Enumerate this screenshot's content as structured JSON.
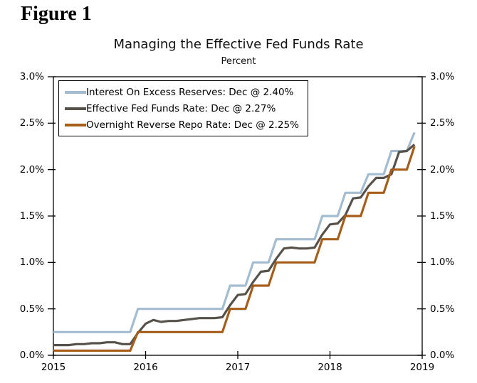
{
  "figure_label": "Figure 1",
  "chart_data": {
    "type": "line",
    "title": "Managing the Effective Fed Funds Rate",
    "subtitle": "Percent",
    "x_start_year": 2015,
    "x_end_year": 2019,
    "x_tick_labels": [
      "2015",
      "2016",
      "2017",
      "2018",
      "2019"
    ],
    "y_ticks": [
      0.0,
      0.5,
      1.0,
      1.5,
      2.0,
      2.5,
      3.0
    ],
    "y_tick_labels": [
      "0.0%",
      "0.5%",
      "1.0%",
      "1.5%",
      "2.0%",
      "2.5%",
      "3.0%"
    ],
    "ylim": [
      0.0,
      3.0
    ],
    "grid": false,
    "legend_position": "top-left",
    "axis_color": "#000000",
    "data_frequency": "monthly, Jan 2015 - Dec 2018",
    "series": [
      {
        "name": "Interest On Excess Reserves: Dec @ 2.40%",
        "color": "#a3bccf",
        "values": [
          0.25,
          0.25,
          0.25,
          0.25,
          0.25,
          0.25,
          0.25,
          0.25,
          0.25,
          0.25,
          0.25,
          0.5,
          0.5,
          0.5,
          0.5,
          0.5,
          0.5,
          0.5,
          0.5,
          0.5,
          0.5,
          0.5,
          0.5,
          0.75,
          0.75,
          0.75,
          1.0,
          1.0,
          1.0,
          1.25,
          1.25,
          1.25,
          1.25,
          1.25,
          1.25,
          1.5,
          1.5,
          1.5,
          1.75,
          1.75,
          1.75,
          1.95,
          1.95,
          1.95,
          2.2,
          2.2,
          2.2,
          2.4
        ]
      },
      {
        "name": "Effective Fed Funds Rate: Dec @ 2.27%",
        "color": "#57514b",
        "values": [
          0.11,
          0.11,
          0.11,
          0.12,
          0.12,
          0.13,
          0.13,
          0.14,
          0.14,
          0.12,
          0.12,
          0.24,
          0.34,
          0.38,
          0.36,
          0.37,
          0.37,
          0.38,
          0.39,
          0.4,
          0.4,
          0.4,
          0.41,
          0.54,
          0.65,
          0.66,
          0.79,
          0.9,
          0.91,
          1.04,
          1.15,
          1.16,
          1.15,
          1.15,
          1.16,
          1.3,
          1.41,
          1.42,
          1.51,
          1.69,
          1.7,
          1.82,
          1.91,
          1.91,
          1.95,
          2.19,
          2.2,
          2.27
        ]
      },
      {
        "name": "Overnight Reverse Repo Rate: Dec @ 2.25%",
        "color": "#a65d1a",
        "values": [
          0.05,
          0.05,
          0.05,
          0.05,
          0.05,
          0.05,
          0.05,
          0.05,
          0.05,
          0.05,
          0.05,
          0.25,
          0.25,
          0.25,
          0.25,
          0.25,
          0.25,
          0.25,
          0.25,
          0.25,
          0.25,
          0.25,
          0.25,
          0.5,
          0.5,
          0.5,
          0.75,
          0.75,
          0.75,
          1.0,
          1.0,
          1.0,
          1.0,
          1.0,
          1.0,
          1.25,
          1.25,
          1.25,
          1.5,
          1.5,
          1.5,
          1.75,
          1.75,
          1.75,
          2.0,
          2.0,
          2.0,
          2.25
        ]
      }
    ]
  }
}
